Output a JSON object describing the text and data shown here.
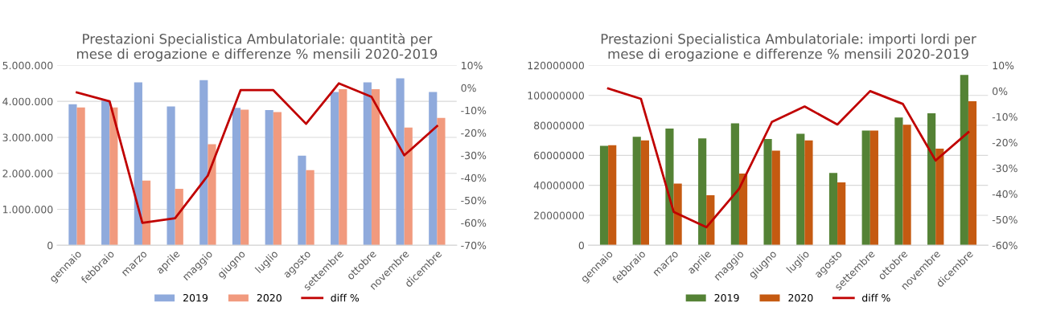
{
  "chart_data": [
    {
      "type": "bar",
      "title": "Prestazioni Specialistica Ambulatoriale: quantità per\nmese di erogazione e differenze % mensili 2020-2019",
      "categories": [
        "gennaio",
        "febbraio",
        "marzo",
        "aprile",
        "maggio",
        "giugno",
        "luglio",
        "agosto",
        "settembre",
        "ottobre",
        "novembre",
        "dicembre"
      ],
      "series": [
        {
          "name": "2019",
          "color": "#8faadc",
          "values": [
            3920000,
            4020000,
            4530000,
            3860000,
            4590000,
            3820000,
            3760000,
            2490000,
            4260000,
            4530000,
            4640000,
            4260000
          ]
        },
        {
          "name": "2020",
          "color": "#f19a7e",
          "values": [
            3830000,
            3830000,
            1800000,
            1570000,
            2810000,
            3770000,
            3700000,
            2090000,
            4340000,
            4340000,
            3270000,
            3540000
          ]
        },
        {
          "name": "diff %",
          "type": "line",
          "axis": "y2",
          "color": "#c00000",
          "values": [
            -2,
            -6,
            -60,
            -58,
            -39,
            -1,
            -1,
            -16,
            2,
            -4,
            -30,
            -17
          ]
        }
      ],
      "ylim": [
        0,
        5000000
      ],
      "yticks": [
        {
          "value": 0,
          "label": "0"
        },
        {
          "value": 1000000,
          "label": "1.000.000"
        },
        {
          "value": 2000000,
          "label": "2.000.000"
        },
        {
          "value": 3000000,
          "label": "3.000.000"
        },
        {
          "value": 4000000,
          "label": "4.000.000"
        },
        {
          "value": 5000000,
          "label": "5.000.000"
        }
      ],
      "y2lim": [
        -70,
        10
      ],
      "y2ticks": [
        {
          "value": -70,
          "label": "-70%"
        },
        {
          "value": -60,
          "label": "-60%"
        },
        {
          "value": -50,
          "label": "-50%"
        },
        {
          "value": -40,
          "label": "-40%"
        },
        {
          "value": -30,
          "label": "-30%"
        },
        {
          "value": -20,
          "label": "-20%"
        },
        {
          "value": -10,
          "label": "-10%"
        },
        {
          "value": 0,
          "label": "0%"
        },
        {
          "value": 10,
          "label": "10%"
        }
      ],
      "grid": "y",
      "legend": "bottom"
    },
    {
      "type": "bar",
      "title": "Prestazioni Specialistica Ambulatoriale: importi lordi per\nmese di erogazione e differenze % mensili 2020-2019",
      "categories": [
        "gennaio",
        "febbraio",
        "marzo",
        "aprile",
        "maggio",
        "giugno",
        "luglio",
        "agosto",
        "settembre",
        "ottobre",
        "novembre",
        "dicembre"
      ],
      "series": [
        {
          "name": "2019",
          "color": "#548235",
          "values": [
            66400000,
            72400000,
            77900000,
            71300000,
            81400000,
            70900000,
            74400000,
            48200000,
            76500000,
            85200000,
            88000000,
            113600000
          ]
        },
        {
          "name": "2020",
          "color": "#c55a11",
          "values": [
            66800000,
            69900000,
            41200000,
            33400000,
            47800000,
            63100000,
            69900000,
            41900000,
            76500000,
            80400000,
            64500000,
            96100000
          ]
        },
        {
          "name": "diff %",
          "type": "line",
          "axis": "y2",
          "color": "#c00000",
          "values": [
            1,
            -3,
            -47,
            -53,
            -38,
            -12,
            -6,
            -13,
            0,
            -5,
            -27,
            -16
          ]
        }
      ],
      "ylim": [
        0,
        120000000
      ],
      "yticks": [
        0,
        20000000,
        40000000,
        60000000,
        80000000,
        100000000,
        120000000
      ],
      "y2lim": [
        -60,
        10
      ],
      "y2ticks": [
        {
          "value": -60,
          "label": "-60%"
        },
        {
          "value": -50,
          "label": "-50%"
        },
        {
          "value": -40,
          "label": "-40%"
        },
        {
          "value": -30,
          "label": "-30%"
        },
        {
          "value": -20,
          "label": "-20%"
        },
        {
          "value": -10,
          "label": "-10%"
        },
        {
          "value": 0,
          "label": "0%"
        },
        {
          "value": 10,
          "label": "10%"
        }
      ],
      "grid": "y",
      "legend": "bottom"
    }
  ]
}
